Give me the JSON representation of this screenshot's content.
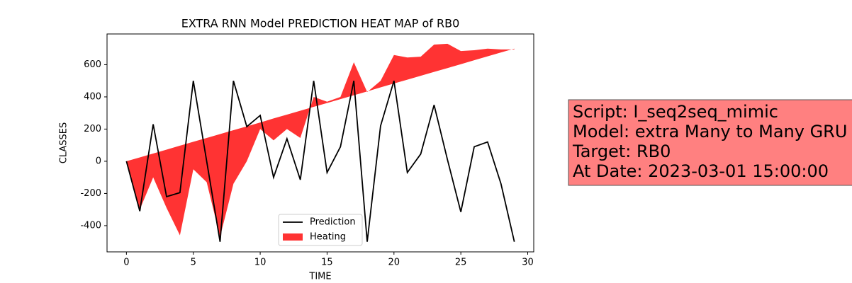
{
  "chart_data": {
    "type": "line",
    "title": "EXTRA RNN Model PREDICTION HEAT MAP of RB0",
    "x_label": "TIME",
    "y_label": "CLASSES",
    "x": [
      0,
      1,
      2,
      3,
      4,
      5,
      6,
      7,
      8,
      9,
      10,
      11,
      12,
      13,
      14,
      15,
      16,
      17,
      18,
      19,
      20,
      21,
      22,
      23,
      24,
      25,
      26,
      27,
      28,
      29
    ],
    "series": [
      {
        "name": "Prediction",
        "color": "#000000",
        "values": [
          0,
          -310,
          230,
          -220,
          -195,
          500,
          0,
          -500,
          500,
          215,
          285,
          -100,
          140,
          -115,
          500,
          -70,
          90,
          500,
          -500,
          220,
          500,
          -70,
          45,
          350,
          10,
          -315,
          90,
          120,
          -140,
          -500
        ]
      },
      {
        "name": "Heating",
        "color": "#ff0000",
        "kind": "fill_between",
        "y1": [
          0,
          24,
          48,
          72,
          97,
          121,
          145,
          169,
          193,
          217,
          241,
          266,
          290,
          314,
          338,
          362,
          386,
          410,
          434,
          459,
          483,
          507,
          531,
          555,
          579,
          603,
          628,
          652,
          676,
          700
        ],
        "y2": [
          0,
          -300,
          -100,
          -290,
          -460,
          -50,
          -130,
          -470,
          -140,
          0,
          200,
          130,
          200,
          145,
          400,
          370,
          400,
          615,
          430,
          500,
          660,
          645,
          650,
          725,
          730,
          685,
          690,
          700,
          695,
          695
        ]
      }
    ],
    "xlim": [
      -1.45,
      30.45
    ],
    "ylim": [
      -563,
      791
    ],
    "xticks": [
      0,
      5,
      10,
      15,
      20,
      25,
      30
    ],
    "yticks": [
      -400,
      -200,
      0,
      200,
      400,
      600
    ],
    "legend": "lower center",
    "info_box": [
      "Script: I_seq2seq_mimic",
      "Model: extra Many to Many GRU",
      "Target: RB0",
      "At Date: 2023-03-01 15:00:00"
    ]
  }
}
